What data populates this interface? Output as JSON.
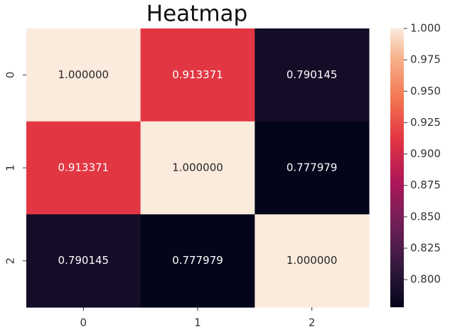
{
  "chart_data": {
    "type": "heatmap",
    "title": "Heatmap",
    "x_categories": [
      "0",
      "1",
      "2"
    ],
    "y_categories": [
      "0",
      "1",
      "2"
    ],
    "values": [
      [
        1,
        0.913371,
        0.790145
      ],
      [
        0.913371,
        1,
        0.777979
      ],
      [
        0.790145,
        0.777979,
        1
      ]
    ],
    "value_labels": [
      [
        "1.000000",
        "0.913371",
        "0.790145"
      ],
      [
        "0.913371",
        "1.000000",
        "0.777979"
      ],
      [
        "0.790145",
        "0.777979",
        "1.000000"
      ]
    ],
    "colormap": "rocket",
    "zlim": [
      0.777979,
      1
    ],
    "zticks": [
      {
        "value": 0.8,
        "label": "0.800"
      },
      0.825,
      {
        "value": 0.85,
        "label": "0.850"
      },
      0.875,
      {
        "value": 0.9,
        "label": "0.900"
      },
      0.925,
      {
        "value": 0.95,
        "label": "0.950"
      },
      0.975,
      {
        "value": 1,
        "label": "1.000"
      }
    ]
  }
}
